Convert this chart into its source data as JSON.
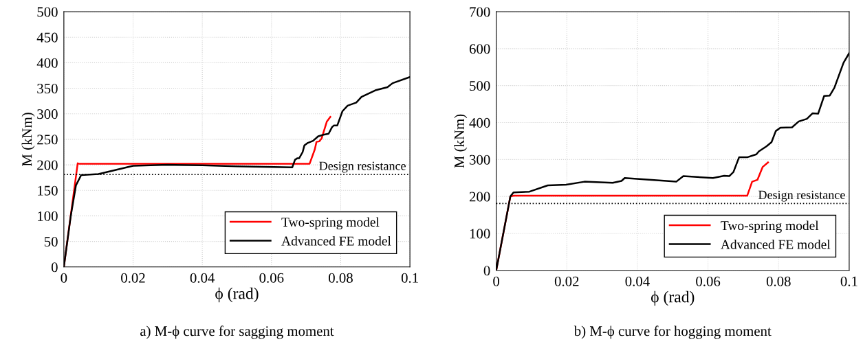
{
  "chart_data": [
    {
      "type": "line",
      "title": "a) M-ϕ curve for sagging moment",
      "xlabel": "ϕ (rad)",
      "ylabel": "M (kNm)",
      "xlim": [
        0,
        0.1
      ],
      "xticks": [
        0,
        0.02,
        0.04,
        0.06,
        0.08,
        0.1
      ],
      "ylim": [
        0,
        500
      ],
      "yticks": [
        0,
        50,
        100,
        150,
        200,
        250,
        300,
        350,
        400,
        450,
        500
      ],
      "grid": true,
      "legend": "bottom right",
      "ref_lines": [
        {
          "axis": "y",
          "value": 181,
          "label": "Design resistance",
          "color": "#000000",
          "line_style": "dotted"
        }
      ],
      "series": [
        {
          "name": "Two-spring model",
          "color": "#ff0000",
          "x": [
            0,
            0.004,
            0.0045,
            0.071,
            0.0725,
            0.073,
            0.0738,
            0.0745,
            0.076,
            0.077
          ],
          "values": [
            0,
            203,
            202,
            202,
            230,
            245,
            246,
            252,
            285,
            294
          ]
        },
        {
          "name": "Advanced FE model",
          "color": "#000000",
          "x": [
            0,
            0.002,
            0.0035,
            0.005,
            0.01,
            0.015,
            0.02,
            0.03,
            0.04,
            0.05,
            0.066,
            0.0668,
            0.0675,
            0.068,
            0.069,
            0.0695,
            0.0705,
            0.072,
            0.0735,
            0.075,
            0.0765,
            0.0775,
            0.078,
            0.079,
            0.0805,
            0.082,
            0.0845,
            0.086,
            0.09,
            0.0935,
            0.095,
            0.1
          ],
          "values": [
            0,
            100,
            160,
            180,
            182,
            190,
            198,
            200,
            199,
            197,
            195,
            210,
            213,
            213,
            225,
            238,
            243,
            247,
            256,
            259,
            261,
            274,
            277,
            277,
            305,
            316,
            322,
            333,
            346,
            352,
            360,
            372
          ]
        }
      ]
    },
    {
      "type": "line",
      "title": "b) M-ϕ curve for hogging moment",
      "xlabel": "ϕ (rad)",
      "ylabel": "M (kNm)",
      "xlim": [
        0,
        0.1
      ],
      "xticks": [
        0,
        0.02,
        0.04,
        0.06,
        0.08,
        0.1
      ],
      "ylim": [
        0,
        700
      ],
      "yticks": [
        0,
        100,
        200,
        300,
        400,
        500,
        600,
        700
      ],
      "grid": true,
      "legend": "bottom right",
      "ref_lines": [
        {
          "axis": "y",
          "value": 181,
          "label": "Design resistance",
          "color": "#000000",
          "line_style": "dotted"
        }
      ],
      "series": [
        {
          "name": "Two-spring model",
          "color": "#ff0000",
          "x": [
            0,
            0.004,
            0.005,
            0.0711,
            0.0725,
            0.074,
            0.0755,
            0.077
          ],
          "values": [
            0,
            200,
            202,
            202,
            240,
            245,
            280,
            292
          ]
        },
        {
          "name": "Advanced FE model",
          "color": "#000000",
          "x": [
            0,
            0.004,
            0.0049,
            0.0094,
            0.0146,
            0.0198,
            0.025,
            0.033,
            0.0355,
            0.0364,
            0.051,
            0.053,
            0.0614,
            0.0646,
            0.066,
            0.0672,
            0.0688,
            0.0711,
            0.0737,
            0.0744,
            0.0766,
            0.078,
            0.0792,
            0.0805,
            0.0838,
            0.0857,
            0.088,
            0.0896,
            0.0912,
            0.0929,
            0.0945,
            0.0958,
            0.0984,
            0.1
          ],
          "values": [
            0,
            200,
            211,
            213,
            230,
            232,
            240,
            237,
            242,
            250,
            240,
            255,
            250,
            256,
            255,
            266,
            306,
            306,
            314,
            322,
            336,
            347,
            377,
            386,
            387,
            403,
            410,
            425,
            424,
            472,
            473,
            494,
            562,
            588
          ]
        }
      ]
    }
  ]
}
